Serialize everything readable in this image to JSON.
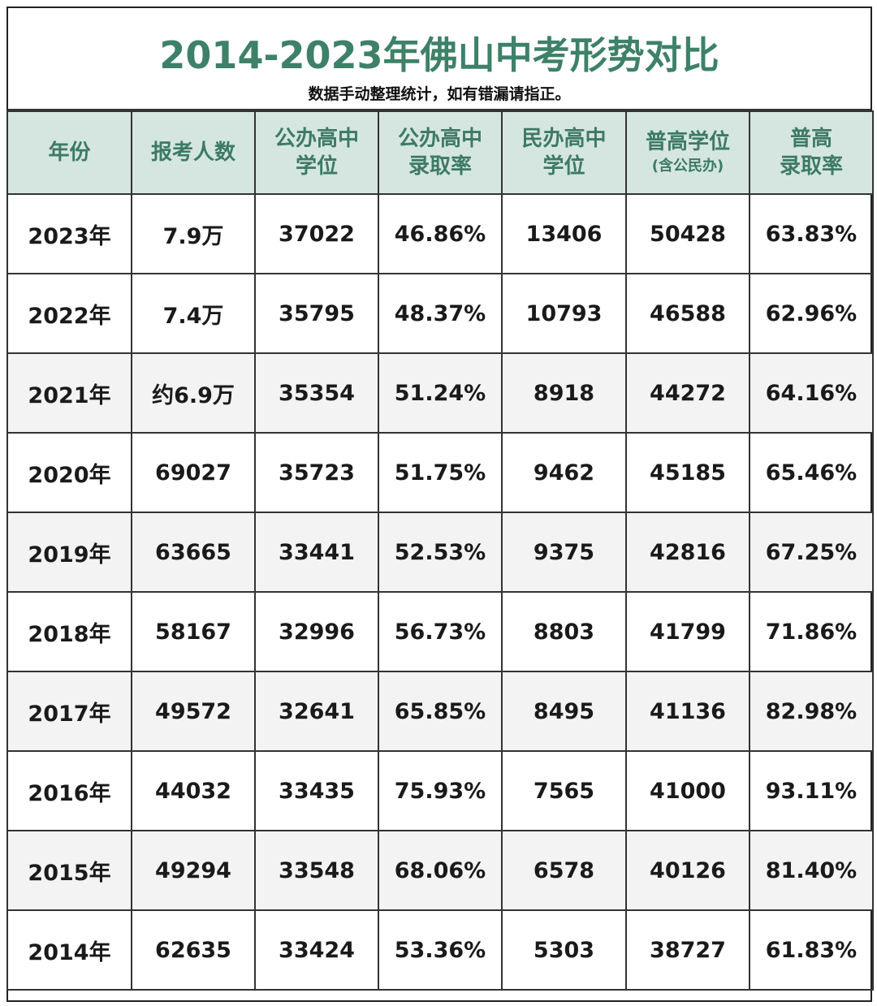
{
  "title": "2014-2023年佛山中考形势对比",
  "subtitle": "数据手动整理统计，如有错漏请指正。",
  "headers": [
    {
      "line1": "年份",
      "line2": ""
    },
    {
      "line1": "报考人数",
      "line2": ""
    },
    {
      "line1": "公办高中",
      "line2": "学位"
    },
    {
      "line1": "公办高中",
      "line2": "录取率"
    },
    {
      "line1": "民办高中",
      "line2": "学位"
    },
    {
      "line1": "普高学位",
      "line2": "(含公民办)"
    },
    {
      "line1": "普高",
      "line2": "录取率"
    }
  ],
  "rows": [
    [
      "2023年",
      "7.9万",
      "37022",
      "46.86%",
      "13406",
      "50428",
      "63.83%"
    ],
    [
      "2022年",
      "7.4万",
      "35795",
      "48.37%",
      "10793",
      "46588",
      "62.96%"
    ],
    [
      "2021年",
      "约6.9万",
      "35354",
      "51.24%",
      "8918",
      "44272",
      "64.16%"
    ],
    [
      "2020年",
      "69027",
      "35723",
      "51.75%",
      "9462",
      "45185",
      "65.46%"
    ],
    [
      "2019年",
      "63665",
      "33441",
      "52.53%",
      "9375",
      "42816",
      "67.25%"
    ],
    [
      "2018年",
      "58167",
      "32996",
      "56.73%",
      "8803",
      "41799",
      "71.86%"
    ],
    [
      "2017年",
      "49572",
      "32641",
      "65.85%",
      "8495",
      "41136",
      "82.98%"
    ],
    [
      "2016年",
      "44032",
      "33435",
      "75.93%",
      "7565",
      "41000",
      "93.11%"
    ],
    [
      "2015年",
      "49294",
      "33548",
      "68.06%",
      "6578",
      "40126",
      "81.40%"
    ],
    [
      "2014年",
      "62635",
      "33424",
      "53.36%",
      "5303",
      "38727",
      "61.83%"
    ]
  ],
  "colors": {
    "title": "#3d8168",
    "header_bg": "#d5e6e0",
    "header_text": "#3d7a65",
    "border": "#333333"
  }
}
